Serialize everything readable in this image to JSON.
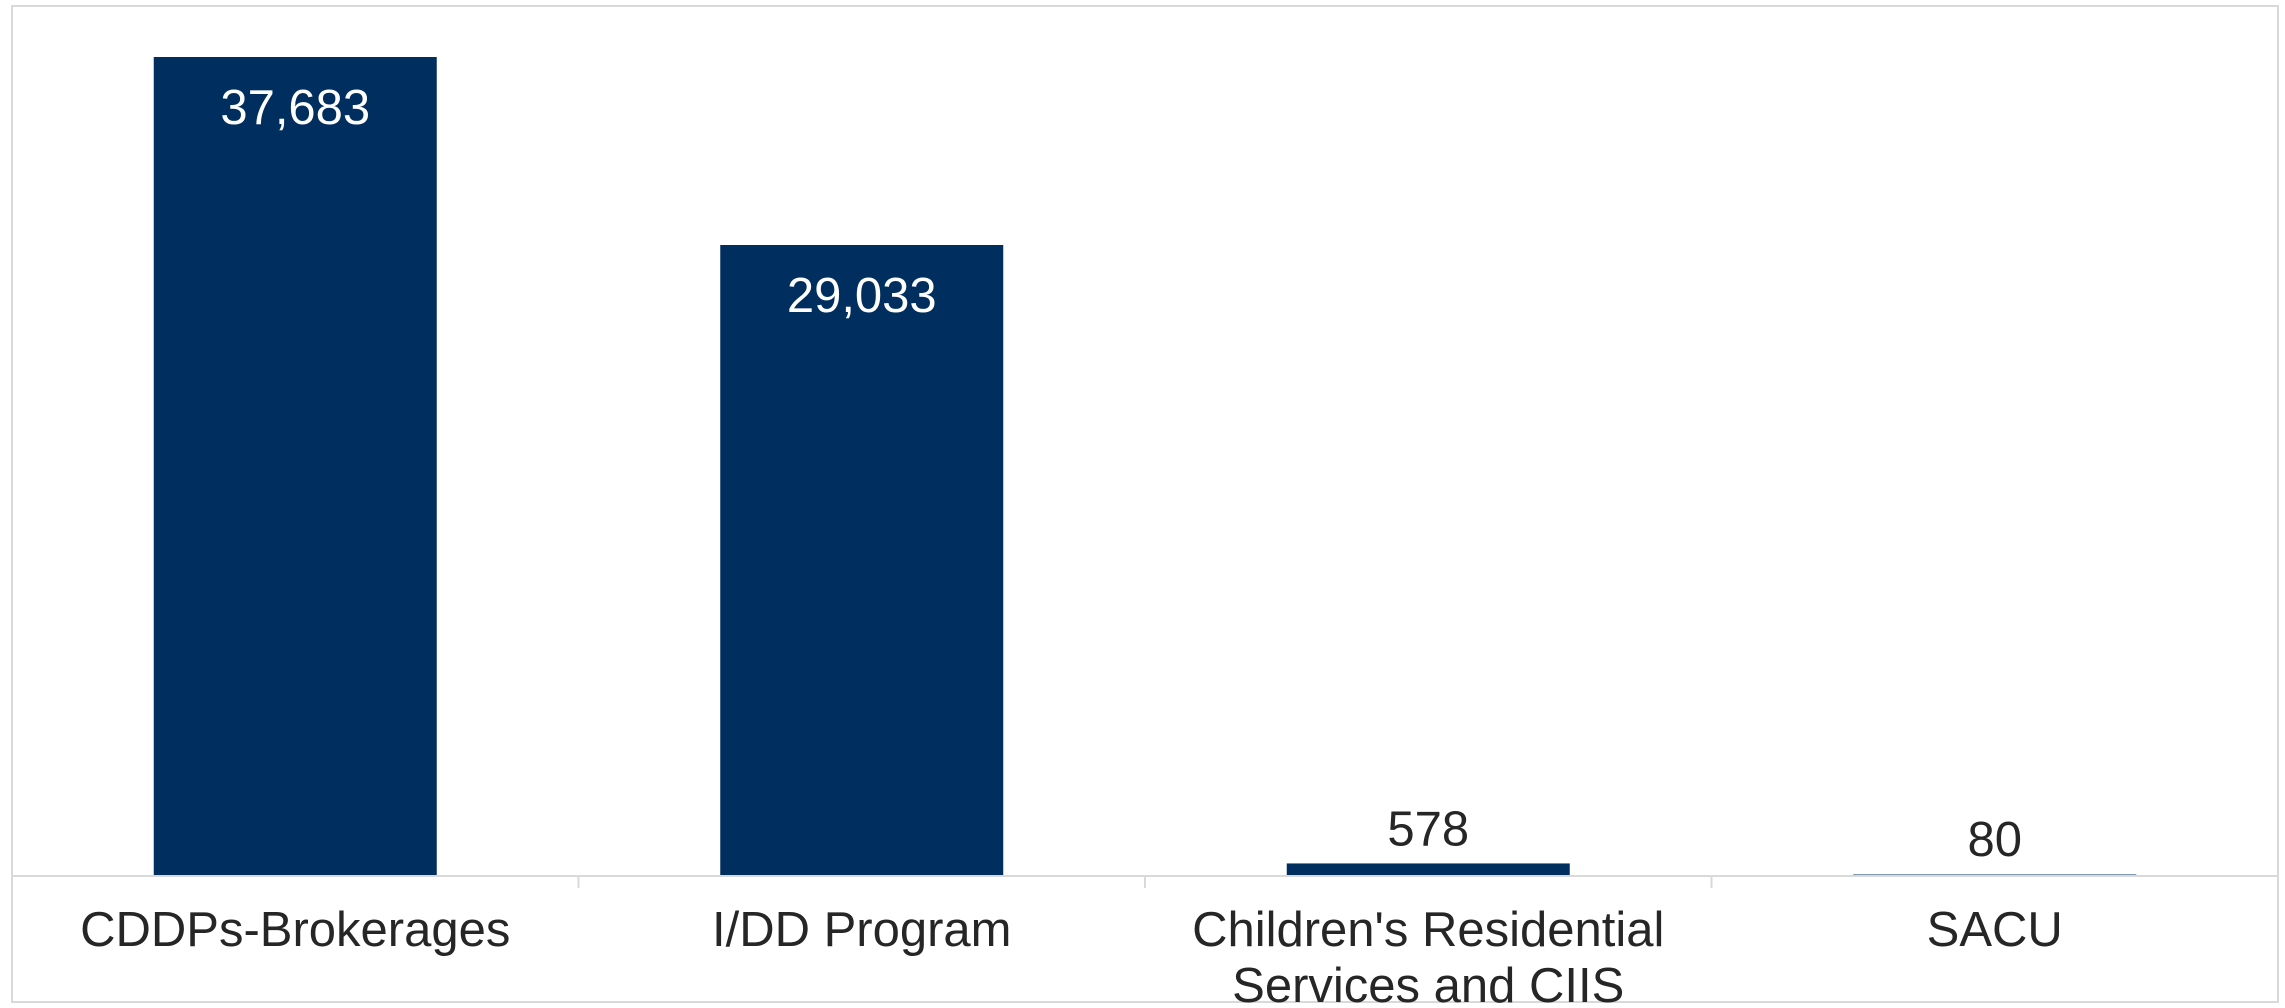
{
  "chart_data": {
    "type": "bar",
    "title": "",
    "xlabel": "",
    "ylabel": "",
    "categories": [
      [
        "CDDPs-Brokerages"
      ],
      [
        "I/DD Program"
      ],
      [
        "Children's Residential",
        "Services and CIIS"
      ],
      [
        "SACU"
      ]
    ],
    "values": [
      37683,
      29033,
      578,
      80
    ],
    "value_labels": [
      "37,683",
      "29,033",
      "578",
      "80"
    ],
    "ylim": [
      0,
      40000
    ],
    "grid": false,
    "legend": "none",
    "bar_color": "#002f5f",
    "inside_label_color": "#ffffff",
    "outside_label_color": "#262626"
  }
}
